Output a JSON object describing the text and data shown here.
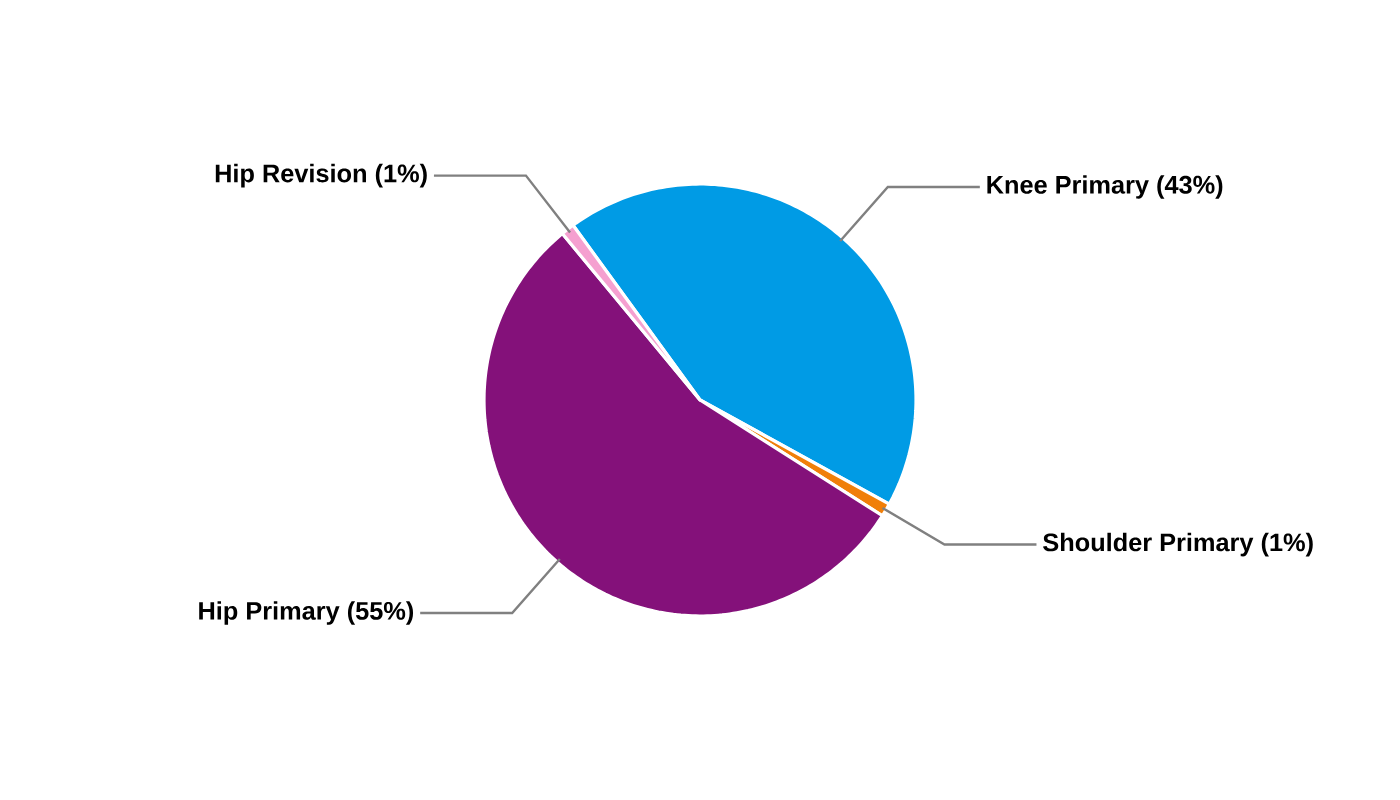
{
  "chart_data": {
    "type": "pie",
    "categories": [
      "Knee Primary (43%)",
      "Shoulder Primary (1%)",
      "Hip Primary (55%)",
      "Hip Revision (1%)"
    ],
    "values": [
      43,
      1,
      55,
      1
    ],
    "colors": [
      "#009be5",
      "#f07f09",
      "#84117a",
      "#f5a0d0"
    ]
  }
}
